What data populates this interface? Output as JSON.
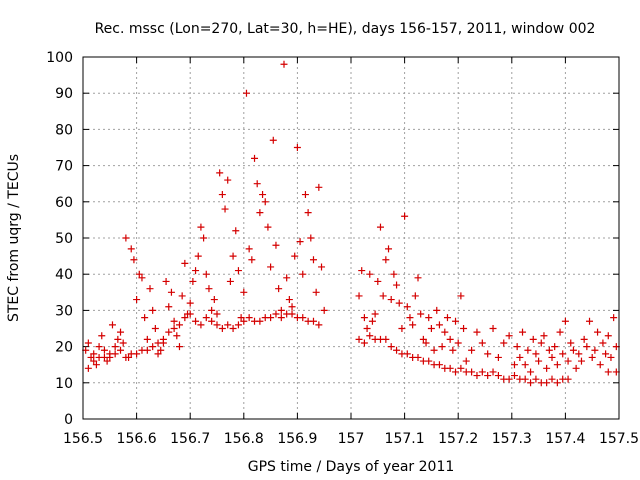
{
  "chart_data": {
    "type": "scatter",
    "title": "Rec. mssc (Lon=270, Lat=30, h=HE), days 156-157, 2011, window 002",
    "xlabel": "GPS time / Days of year 2011",
    "ylabel": "STEC from uqrg / TECUs",
    "xlim": [
      156.5,
      157.5
    ],
    "ylim": [
      0,
      100
    ],
    "x_ticks": [
      156.5,
      156.6,
      156.7,
      156.8,
      156.9,
      157,
      157.1,
      157.2,
      157.3,
      157.4,
      157.5
    ],
    "x_tick_labels": [
      "156.5",
      "156.6",
      "156.7",
      "156.8",
      "156.9",
      "157",
      "157.1",
      "157.2",
      "157.3",
      "157.4",
      "157.5"
    ],
    "y_ticks": [
      0,
      10,
      20,
      30,
      40,
      50,
      60,
      70,
      80,
      90,
      100
    ],
    "y_tick_labels": [
      "0",
      "10",
      "20",
      "30",
      "40",
      "50",
      "60",
      "70",
      "80",
      "90",
      "100"
    ],
    "grid": true,
    "marker": "+",
    "color": "#d40000",
    "points": [
      [
        156.505,
        19
      ],
      [
        156.51,
        21
      ],
      [
        156.515,
        17
      ],
      [
        156.52,
        18
      ],
      [
        156.525,
        15
      ],
      [
        156.53,
        20
      ],
      [
        156.535,
        23
      ],
      [
        156.54,
        19
      ],
      [
        156.545,
        16
      ],
      [
        156.55,
        18
      ],
      [
        156.555,
        26
      ],
      [
        156.56,
        20
      ],
      [
        156.565,
        22
      ],
      [
        156.57,
        24
      ],
      [
        156.575,
        21
      ],
      [
        156.58,
        50
      ],
      [
        156.585,
        17
      ],
      [
        156.59,
        47
      ],
      [
        156.595,
        44
      ],
      [
        156.6,
        33
      ],
      [
        156.605,
        40
      ],
      [
        156.61,
        39
      ],
      [
        156.615,
        28
      ],
      [
        156.62,
        22
      ],
      [
        156.625,
        36
      ],
      [
        156.63,
        30
      ],
      [
        156.635,
        25
      ],
      [
        156.64,
        18
      ],
      [
        156.645,
        19
      ],
      [
        156.65,
        21
      ],
      [
        156.655,
        38
      ],
      [
        156.66,
        31
      ],
      [
        156.665,
        35
      ],
      [
        156.67,
        27
      ],
      [
        156.675,
        23
      ],
      [
        156.68,
        20
      ],
      [
        156.685,
        34
      ],
      [
        156.69,
        43
      ],
      [
        156.695,
        29
      ],
      [
        156.7,
        32
      ],
      [
        156.51,
        14
      ],
      [
        156.52,
        16
      ],
      [
        156.53,
        17
      ],
      [
        156.54,
        17
      ],
      [
        156.55,
        17
      ],
      [
        156.56,
        18
      ],
      [
        156.57,
        19
      ],
      [
        156.58,
        17
      ],
      [
        156.59,
        18
      ],
      [
        156.6,
        18
      ],
      [
        156.61,
        19
      ],
      [
        156.62,
        19
      ],
      [
        156.63,
        20
      ],
      [
        156.64,
        21
      ],
      [
        156.65,
        22
      ],
      [
        156.66,
        24
      ],
      [
        156.67,
        25
      ],
      [
        156.68,
        26
      ],
      [
        156.69,
        28
      ],
      [
        156.7,
        29
      ],
      [
        156.705,
        38
      ],
      [
        156.71,
        41
      ],
      [
        156.715,
        45
      ],
      [
        156.72,
        53
      ],
      [
        156.725,
        50
      ],
      [
        156.73,
        40
      ],
      [
        156.735,
        36
      ],
      [
        156.74,
        30
      ],
      [
        156.745,
        33
      ],
      [
        156.75,
        29
      ],
      [
        156.755,
        68
      ],
      [
        156.76,
        62
      ],
      [
        156.765,
        58
      ],
      [
        156.77,
        66
      ],
      [
        156.775,
        38
      ],
      [
        156.78,
        45
      ],
      [
        156.785,
        52
      ],
      [
        156.79,
        41
      ],
      [
        156.795,
        28
      ],
      [
        156.8,
        35
      ],
      [
        156.805,
        90
      ],
      [
        156.81,
        47
      ],
      [
        156.815,
        44
      ],
      [
        156.82,
        72
      ],
      [
        156.825,
        65
      ],
      [
        156.83,
        57
      ],
      [
        156.835,
        62
      ],
      [
        156.84,
        60
      ],
      [
        156.845,
        53
      ],
      [
        156.85,
        42
      ],
      [
        156.855,
        77
      ],
      [
        156.86,
        48
      ],
      [
        156.865,
        36
      ],
      [
        156.87,
        30
      ],
      [
        156.875,
        98
      ],
      [
        156.88,
        39
      ],
      [
        156.885,
        33
      ],
      [
        156.89,
        31
      ],
      [
        156.895,
        45
      ],
      [
        156.9,
        75
      ],
      [
        156.905,
        49
      ],
      [
        156.91,
        40
      ],
      [
        156.915,
        62
      ],
      [
        156.92,
        57
      ],
      [
        156.925,
        50
      ],
      [
        156.93,
        44
      ],
      [
        156.935,
        35
      ],
      [
        156.94,
        64
      ],
      [
        156.945,
        42
      ],
      [
        156.95,
        30
      ],
      [
        156.71,
        27
      ],
      [
        156.72,
        26
      ],
      [
        156.73,
        28
      ],
      [
        156.74,
        27
      ],
      [
        156.75,
        26
      ],
      [
        156.76,
        25
      ],
      [
        156.77,
        26
      ],
      [
        156.78,
        25
      ],
      [
        156.79,
        26
      ],
      [
        156.8,
        27
      ],
      [
        156.81,
        28
      ],
      [
        156.82,
        27
      ],
      [
        156.83,
        27
      ],
      [
        156.84,
        28
      ],
      [
        156.85,
        28
      ],
      [
        156.86,
        29
      ],
      [
        156.87,
        28
      ],
      [
        156.88,
        29
      ],
      [
        156.89,
        29
      ],
      [
        156.9,
        28
      ],
      [
        156.91,
        28
      ],
      [
        156.92,
        27
      ],
      [
        156.93,
        27
      ],
      [
        156.94,
        26
      ],
      [
        157.015,
        34
      ],
      [
        157.02,
        41
      ],
      [
        157.025,
        28
      ],
      [
        157.03,
        25
      ],
      [
        157.035,
        40
      ],
      [
        157.04,
        27
      ],
      [
        157.045,
        29
      ],
      [
        157.05,
        38
      ],
      [
        157.055,
        53
      ],
      [
        157.06,
        34
      ],
      [
        157.065,
        44
      ],
      [
        157.07,
        47
      ],
      [
        157.075,
        33
      ],
      [
        157.08,
        40
      ],
      [
        157.085,
        37
      ],
      [
        157.09,
        32
      ],
      [
        157.095,
        25
      ],
      [
        157.1,
        56
      ],
      [
        157.105,
        31
      ],
      [
        157.11,
        28
      ],
      [
        157.015,
        22
      ],
      [
        157.025,
        21
      ],
      [
        157.035,
        23
      ],
      [
        157.045,
        22
      ],
      [
        157.055,
        22
      ],
      [
        157.065,
        22
      ],
      [
        157.075,
        20
      ],
      [
        157.085,
        19
      ],
      [
        157.095,
        18
      ],
      [
        157.105,
        18
      ],
      [
        157.115,
        17
      ],
      [
        157.125,
        17
      ],
      [
        157.135,
        16
      ],
      [
        157.145,
        16
      ],
      [
        157.155,
        15
      ],
      [
        157.115,
        26
      ],
      [
        157.12,
        34
      ],
      [
        157.125,
        39
      ],
      [
        157.13,
        29
      ],
      [
        157.135,
        22
      ],
      [
        157.14,
        21
      ],
      [
        157.145,
        28
      ],
      [
        157.15,
        25
      ],
      [
        157.155,
        19
      ],
      [
        157.16,
        30
      ],
      [
        157.165,
        26
      ],
      [
        157.17,
        20
      ],
      [
        157.175,
        24
      ],
      [
        157.18,
        28
      ],
      [
        157.185,
        22
      ],
      [
        157.19,
        19
      ],
      [
        157.195,
        27
      ],
      [
        157.2,
        21
      ],
      [
        157.205,
        34
      ],
      [
        157.21,
        25
      ],
      [
        157.165,
        15
      ],
      [
        157.175,
        14
      ],
      [
        157.185,
        14
      ],
      [
        157.195,
        13
      ],
      [
        157.205,
        14
      ],
      [
        157.215,
        16
      ],
      [
        157.225,
        19
      ],
      [
        157.235,
        24
      ],
      [
        157.245,
        21
      ],
      [
        157.255,
        18
      ],
      [
        157.265,
        25
      ],
      [
        157.275,
        17
      ],
      [
        157.285,
        21
      ],
      [
        157.295,
        23
      ],
      [
        157.305,
        15
      ],
      [
        157.215,
        13
      ],
      [
        157.225,
        13
      ],
      [
        157.235,
        12
      ],
      [
        157.245,
        13
      ],
      [
        157.255,
        12
      ],
      [
        157.265,
        13
      ],
      [
        157.275,
        12
      ],
      [
        157.285,
        11
      ],
      [
        157.295,
        11
      ],
      [
        157.305,
        12
      ],
      [
        157.315,
        11
      ],
      [
        157.325,
        11
      ],
      [
        157.335,
        10
      ],
      [
        157.345,
        11
      ],
      [
        157.355,
        10
      ],
      [
        157.365,
        10
      ],
      [
        157.375,
        11
      ],
      [
        157.385,
        10
      ],
      [
        157.395,
        11
      ],
      [
        157.405,
        11
      ],
      [
        157.31,
        20
      ],
      [
        157.315,
        17
      ],
      [
        157.32,
        24
      ],
      [
        157.325,
        15
      ],
      [
        157.33,
        19
      ],
      [
        157.335,
        13
      ],
      [
        157.34,
        22
      ],
      [
        157.345,
        18
      ],
      [
        157.35,
        16
      ],
      [
        157.355,
        21
      ],
      [
        157.36,
        23
      ],
      [
        157.365,
        14
      ],
      [
        157.37,
        19
      ],
      [
        157.375,
        17
      ],
      [
        157.38,
        20
      ],
      [
        157.385,
        15
      ],
      [
        157.39,
        24
      ],
      [
        157.395,
        18
      ],
      [
        157.4,
        27
      ],
      [
        157.405,
        16
      ],
      [
        157.41,
        21
      ],
      [
        157.415,
        19
      ],
      [
        157.42,
        14
      ],
      [
        157.425,
        18
      ],
      [
        157.43,
        16
      ],
      [
        157.435,
        22
      ],
      [
        157.44,
        20
      ],
      [
        157.445,
        27
      ],
      [
        157.45,
        17
      ],
      [
        157.455,
        19
      ],
      [
        157.46,
        24
      ],
      [
        157.465,
        15
      ],
      [
        157.47,
        21
      ],
      [
        157.475,
        18
      ],
      [
        157.48,
        23
      ],
      [
        157.485,
        17
      ],
      [
        157.49,
        28
      ],
      [
        157.495,
        20
      ],
      [
        157.495,
        13
      ],
      [
        157.48,
        13
      ]
    ]
  }
}
